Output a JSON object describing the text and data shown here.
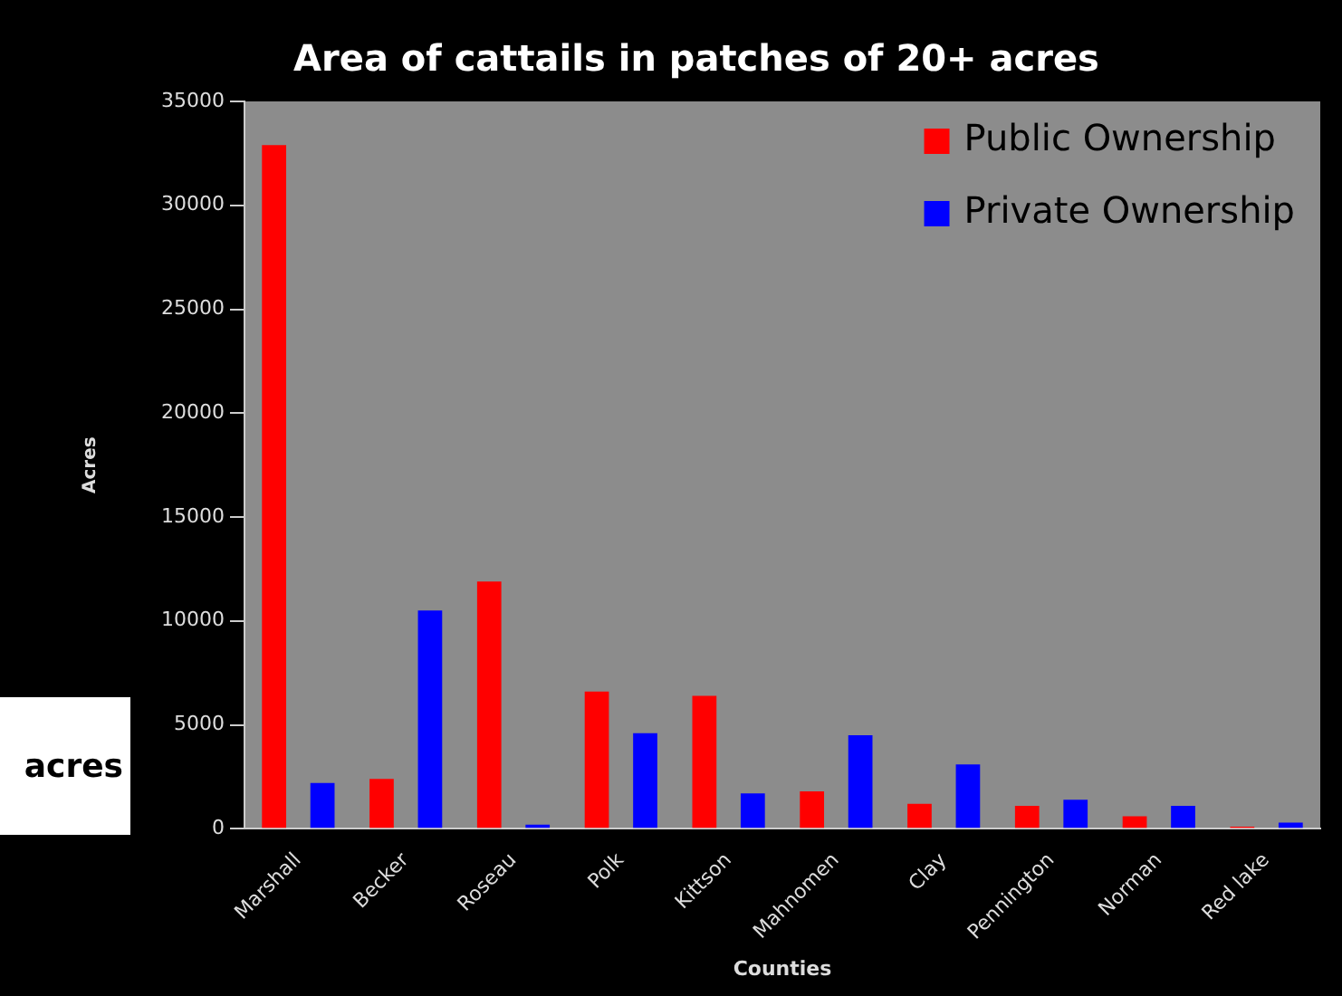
{
  "chart_data": {
    "type": "bar",
    "title": "Area of cattails in patches of 20+ acres",
    "xlabel": "Counties",
    "ylabel": "Acres",
    "categories": [
      "Marshall",
      "Becker",
      "Roseau",
      "Polk",
      "Kittson",
      "Mahnomen",
      "Clay",
      "Pennington",
      "Norman",
      "Red lake"
    ],
    "series": [
      {
        "name": "Public Ownership",
        "color": "#ff0000",
        "values": [
          32900,
          2400,
          11900,
          6600,
          6400,
          1800,
          1200,
          1100,
          600,
          100
        ]
      },
      {
        "name": "Private Ownership",
        "color": "#0000ff",
        "values": [
          2200,
          10500,
          200,
          4600,
          1700,
          4500,
          3100,
          1400,
          1100,
          300
        ]
      }
    ],
    "ylim": [
      0,
      35000
    ],
    "yticks": [
      0,
      5000,
      10000,
      15000,
      20000,
      25000,
      30000,
      35000
    ],
    "grid": false,
    "legend": "top right",
    "annotations": [
      "acres"
    ]
  }
}
